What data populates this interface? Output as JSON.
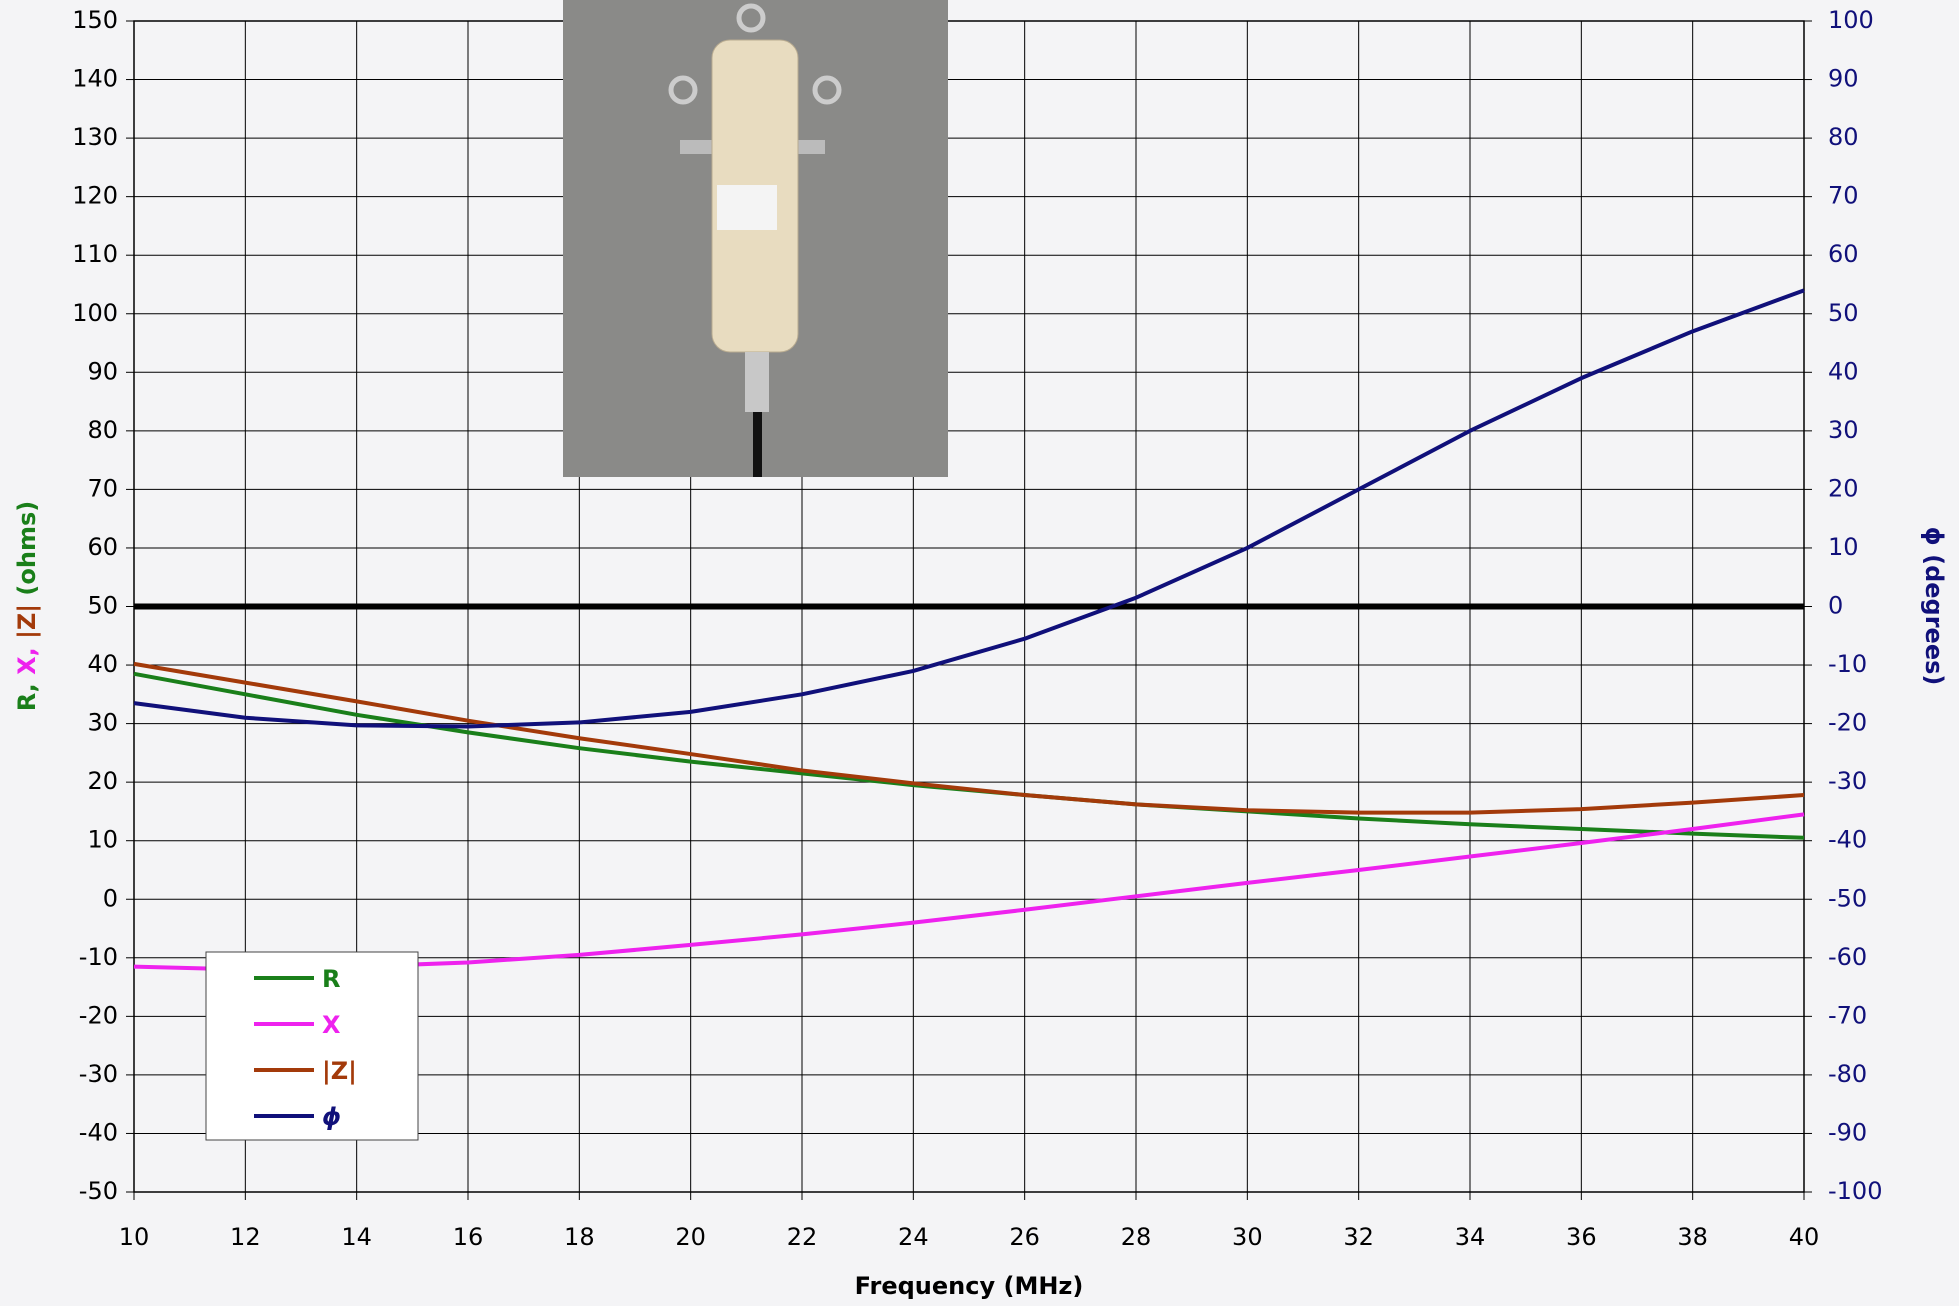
{
  "chart_data": {
    "type": "line",
    "xlabel": "Frequency (MHz)",
    "ylabel_parts": [
      {
        "text": "R, ",
        "color": "#1a7f1a"
      },
      {
        "text": "X, ",
        "color": "#ee22ee"
      },
      {
        "text": "|Z| ",
        "color": "#a33a0a"
      },
      {
        "text": "(ohms)",
        "color": "#1a7f1a"
      }
    ],
    "y2label": "ϕ (degrees)",
    "x": [
      10,
      12,
      14,
      16,
      18,
      20,
      22,
      24,
      26,
      28,
      30,
      32,
      34,
      36,
      38,
      40
    ],
    "xlim": [
      10,
      40
    ],
    "xticks": [
      10,
      12,
      14,
      16,
      18,
      20,
      22,
      24,
      26,
      28,
      30,
      32,
      34,
      36,
      38,
      40
    ],
    "ylim": [
      -50,
      150
    ],
    "yticks": [
      -50,
      -40,
      -30,
      -20,
      -10,
      0,
      10,
      20,
      30,
      40,
      50,
      60,
      70,
      80,
      90,
      100,
      110,
      120,
      130,
      140,
      150
    ],
    "y2lim": [
      -100,
      100
    ],
    "y2ticks": [
      -100,
      -90,
      -80,
      -70,
      -60,
      -50,
      -40,
      -30,
      -20,
      -10,
      0,
      10,
      20,
      30,
      40,
      50,
      60,
      70,
      80,
      90,
      100
    ],
    "grid": true,
    "reference_y": 50,
    "reference_color": "#000000",
    "legend": "lower left",
    "series": [
      {
        "name": "R",
        "color": "#1a7f1a",
        "values": [
          38.5,
          35,
          31.5,
          28.5,
          25.8,
          23.5,
          21.5,
          19.5,
          17.8,
          16.2,
          15,
          13.8,
          12.8,
          12,
          11.2,
          10.5
        ]
      },
      {
        "name": "X",
        "color": "#ee22ee",
        "values": [
          -11.5,
          -12,
          -11.5,
          -10.8,
          -9.5,
          -7.8,
          -6,
          -4,
          -1.8,
          0.5,
          2.8,
          5,
          7.3,
          9.6,
          12,
          14.5
        ]
      },
      {
        "name": "|Z|",
        "color": "#a33a0a",
        "values": [
          40.2,
          37,
          33.8,
          30.5,
          27.5,
          24.8,
          22,
          19.8,
          17.8,
          16.2,
          15.2,
          14.8,
          14.8,
          15.4,
          16.5,
          17.8
        ]
      },
      {
        "name": "ϕ",
        "color": "#10107a",
        "axis": "y2",
        "values": [
          -16.5,
          -19,
          -20.3,
          -20.5,
          -19.8,
          -18,
          -15,
          -11,
          -5.5,
          1.5,
          10,
          20,
          30,
          39,
          47,
          54
        ]
      }
    ]
  }
}
